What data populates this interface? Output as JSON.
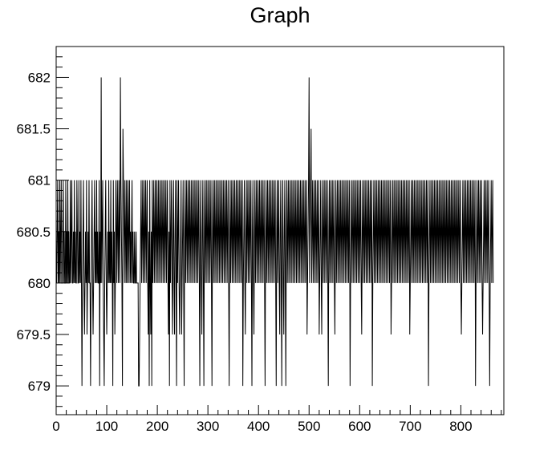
{
  "chart_data": {
    "type": "line",
    "title": "Graph",
    "xlabel": "",
    "ylabel": "",
    "xlim": [
      0,
      885
    ],
    "ylim": [
      678.72,
      682.3
    ],
    "x_ticks": [
      0,
      100,
      200,
      300,
      400,
      500,
      600,
      700,
      800
    ],
    "y_ticks": [
      679,
      679.5,
      680,
      680.5,
      681,
      681.5,
      682
    ],
    "x_tick_labels": [
      "0",
      "100",
      "200",
      "300",
      "400",
      "500",
      "600",
      "700",
      "800"
    ],
    "y_tick_labels": [
      "679",
      "679.5",
      "680",
      "680.5",
      "681",
      "681.5",
      "682"
    ],
    "grid": false,
    "line_color": "#000000",
    "series": [
      {
        "x_start": 1,
        "x_step": 1,
        "values": [
          680,
          680.5,
          681,
          680,
          680.5,
          680,
          681,
          680,
          680.5,
          681,
          680,
          680,
          680.5,
          681,
          680,
          680.5,
          680,
          680,
          681,
          680,
          680.5,
          680,
          681,
          680,
          680.5,
          680,
          680,
          681,
          680,
          680.5,
          681,
          680,
          680,
          680.5,
          680,
          681,
          680,
          680.5,
          680,
          680,
          681,
          680.5,
          680,
          680,
          681,
          680,
          680.5,
          680,
          681,
          680,
          679,
          680,
          680.5,
          681,
          680,
          679.5,
          680,
          680.5,
          680,
          681,
          679.5,
          680,
          680.5,
          680,
          681,
          680,
          680,
          679,
          680,
          680.5,
          681,
          680,
          679.5,
          680,
          680.5,
          681,
          680,
          680.5,
          680,
          681,
          680,
          680.5,
          680,
          680,
          681,
          679,
          680.5,
          680,
          682,
          680,
          680.5,
          681,
          680,
          679.5,
          679,
          680,
          680.5,
          681,
          680,
          679.5,
          680,
          680.5,
          680,
          681,
          680,
          680.5,
          680,
          681,
          680,
          680.5,
          680,
          679,
          681,
          680,
          680.5,
          679.5,
          680,
          681,
          680.5,
          680,
          681,
          680.5,
          680,
          681,
          680.5,
          680,
          682,
          681,
          680.5,
          680,
          679,
          681.5,
          681,
          680.5,
          680,
          681,
          680.5,
          680,
          681,
          680,
          680.5,
          681,
          680,
          680.5,
          681,
          680,
          680.5,
          680,
          680.5,
          681,
          680,
          680.5,
          680,
          680,
          680.5,
          680,
          680,
          680.5,
          680,
          680,
          680,
          680,
          679,
          679,
          679.5,
          680,
          680.5,
          681,
          680,
          680.5,
          681,
          680,
          680.5,
          681,
          680,
          680.5,
          681,
          680,
          680.5,
          681,
          680,
          679.5,
          680.5,
          679,
          681,
          680,
          679.5,
          680.5,
          679,
          681,
          680,
          680.5,
          681,
          680,
          680.5,
          681,
          680,
          680.5,
          681,
          680,
          680.5,
          681,
          680,
          680.5,
          681,
          680,
          680.5,
          681,
          680,
          680.5,
          681,
          680,
          680.5,
          681,
          680,
          680.5,
          681,
          680,
          680.5,
          681,
          680,
          679.5,
          680.5,
          679,
          681,
          680,
          680.5,
          681,
          680,
          679.5,
          680.5,
          681,
          680,
          679.5,
          680.5,
          681,
          680,
          679,
          681,
          680,
          680.5,
          681,
          680,
          679.5,
          680,
          680.5,
          681,
          679.5,
          680,
          680.5,
          681,
          680,
          679,
          680.5,
          681,
          680,
          680.5,
          681,
          680,
          680.5,
          681,
          680,
          680.5,
          681,
          680,
          680.5,
          681,
          680,
          680.5,
          681,
          680,
          680.5,
          681,
          680,
          680.5,
          681,
          680,
          680.5,
          681,
          680,
          680.5,
          681,
          680,
          679,
          680.5,
          681,
          680,
          679.5,
          680.5,
          681,
          680,
          679,
          680.5,
          681,
          680,
          680.5,
          681,
          680,
          680.5,
          681,
          680,
          680.5,
          681,
          680,
          680.5,
          681,
          680,
          679,
          680.5,
          681,
          680,
          680.5,
          681,
          680,
          680.5,
          681,
          680,
          680.5,
          681,
          680,
          680.5,
          681,
          680,
          680.5,
          681,
          680,
          680.5,
          681,
          680,
          680.5,
          681,
          680,
          680.5,
          681,
          680,
          680.5,
          681,
          680,
          680.5,
          681,
          680,
          679,
          680.5,
          681,
          680,
          680.5,
          681,
          680,
          680.5,
          681,
          680,
          680.5,
          681,
          680,
          680.5,
          681,
          680,
          680.5,
          681,
          680,
          680.5,
          681,
          680,
          680.5,
          681,
          680,
          680.5,
          681,
          679,
          680,
          680.5,
          681,
          680,
          679.5,
          680.5,
          681,
          680,
          680.5,
          681,
          680,
          680.5,
          681,
          680,
          680.5,
          681,
          680,
          679,
          680.5,
          681,
          680,
          679.5,
          680.5,
          681,
          680,
          680.5,
          681,
          680,
          680.5,
          681,
          680,
          680.5,
          681,
          680,
          680.5,
          681,
          680,
          680.5,
          681,
          680,
          680.5,
          681,
          680,
          679,
          680.5,
          681,
          680,
          680.5,
          681,
          680,
          680.5,
          681,
          680,
          680.5,
          681,
          680,
          680.5,
          681,
          680,
          680.5,
          681,
          680,
          680.5,
          681,
          680,
          679,
          680.5,
          681,
          680,
          680.5,
          681,
          680,
          679.5,
          680.5,
          681,
          680,
          679,
          680.5,
          681,
          680,
          679.5,
          680.5,
          681,
          680,
          679,
          680.5,
          681,
          680,
          680.5,
          681,
          680,
          680.5,
          681,
          680,
          680.5,
          681,
          680,
          680.5,
          681,
          680,
          680.5,
          681,
          680,
          680.5,
          681,
          680,
          680.5,
          681,
          680,
          680.5,
          681,
          680,
          680.5,
          681,
          680,
          680.5,
          681,
          680,
          680.5,
          681,
          680,
          680.5,
          681,
          680,
          680.5,
          681,
          679.5,
          680,
          680.5,
          681,
          682,
          680,
          680.5,
          681,
          681.5,
          680,
          680.5,
          681,
          680,
          680.5,
          681,
          680,
          680.5,
          681,
          680,
          680.5,
          681,
          680,
          680.5,
          681,
          679.5,
          680,
          680.5,
          681,
          680,
          679.5,
          680.5,
          681,
          680,
          680.5,
          681,
          680,
          680.5,
          681,
          680,
          680.5,
          681,
          680,
          679,
          680.5,
          681,
          680,
          680.5,
          681,
          680,
          680.5,
          681,
          680,
          680.5,
          681,
          680,
          679.5,
          680.5,
          681,
          680,
          680.5,
          681,
          680,
          680.5,
          681,
          680,
          680.5,
          681,
          680,
          680.5,
          681,
          680,
          680.5,
          681,
          680,
          680.5,
          681,
          680,
          680.5,
          681,
          680,
          680.5,
          681,
          680,
          680.5,
          681,
          679,
          680,
          680.5,
          681,
          680,
          680.5,
          681,
          680,
          680.5,
          681,
          680,
          680.5,
          681,
          680,
          680.5,
          681,
          680,
          680.5,
          681,
          680,
          680.5,
          681,
          680,
          679.5,
          680.5,
          681,
          680,
          680.5,
          681,
          680,
          680.5,
          681,
          680,
          680.5,
          681,
          680,
          680.5,
          681,
          680,
          680.5,
          681,
          680,
          680.5,
          681,
          679,
          680,
          680.5,
          681,
          680,
          680.5,
          681,
          680,
          680.5,
          681,
          680,
          680.5,
          681,
          680,
          680.5,
          681,
          680,
          680.5,
          681,
          680,
          680.5,
          681,
          680,
          680.5,
          681,
          680,
          680.5,
          681,
          680,
          680.5,
          681,
          680,
          680.5,
          681,
          680,
          680.5,
          681,
          679.5,
          680,
          680.5,
          681,
          680,
          680.5,
          681,
          680,
          680.5,
          681,
          680,
          680.5,
          681,
          680,
          680.5,
          681,
          680,
          680.5,
          681,
          680,
          680.5,
          681,
          680,
          680.5,
          681,
          680,
          680.5,
          681,
          680,
          680.5,
          681,
          680,
          680.5,
          681,
          680,
          680.5,
          681,
          679.5,
          680,
          680.5,
          681,
          680,
          680.5,
          681,
          680,
          680.5,
          681,
          680,
          680.5,
          681,
          680,
          680.5,
          681,
          680,
          680.5,
          681,
          680,
          680.5,
          681,
          680,
          680.5,
          681,
          680,
          680.5,
          681,
          680,
          680.5,
          681,
          680,
          680.5,
          681,
          680,
          680.5,
          681,
          679,
          680,
          680.5,
          681,
          680,
          680.5,
          681,
          680,
          680.5,
          681,
          680,
          680.5,
          681,
          680,
          680.5,
          681,
          680,
          680.5,
          681,
          680,
          680.5,
          681,
          680,
          680.5,
          681,
          680,
          680.5,
          681,
          680,
          680.5,
          681,
          680,
          680.5,
          681,
          680,
          680.5,
          681,
          680,
          680.5,
          681,
          680,
          680.5,
          681,
          680,
          680.5,
          681,
          680,
          680.5,
          681,
          680,
          680.5,
          681,
          680,
          680.5,
          681,
          680,
          680.5,
          681,
          680,
          680.5,
          681,
          680,
          680.5,
          681,
          680,
          679.5,
          680,
          680.5,
          681,
          680,
          680.5,
          681,
          680,
          680.5,
          681,
          680,
          680.5,
          681,
          680,
          680.5,
          681,
          680,
          680.5,
          681,
          680,
          680.5,
          681,
          680,
          680.5,
          681,
          680,
          680.5,
          681,
          679,
          680,
          680.5,
          681,
          680,
          680.5,
          681,
          680,
          680.5,
          681,
          680,
          680.5,
          681,
          680,
          679.5,
          680,
          680.5,
          681,
          680,
          680.5,
          681,
          680,
          680.5,
          681,
          680,
          680.5,
          681,
          680,
          679,
          680,
          680.5,
          681,
          680,
          680.5,
          681,
          680
        ]
      }
    ]
  }
}
